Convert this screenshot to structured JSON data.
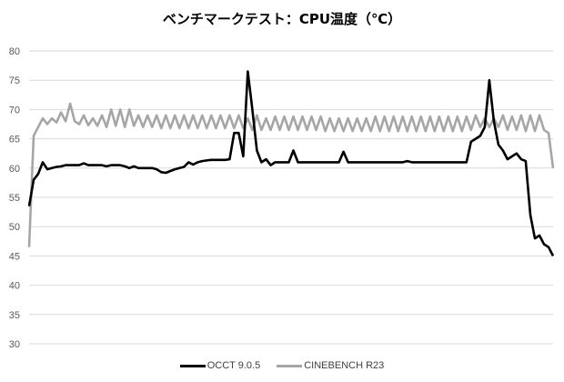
{
  "chart_data": {
    "type": "line",
    "title": "ベンチマークテスト：CPU温度（℃）",
    "xlabel": "",
    "ylabel": "",
    "ylim": [
      30,
      80
    ],
    "yticks": [
      "30",
      "35",
      "40",
      "45",
      "50",
      "55",
      "60",
      "65",
      "70",
      "75",
      "80"
    ],
    "grid": true,
    "legend": "bottom",
    "series": [
      {
        "name": "OCCT 9.0.5",
        "color": "#000000",
        "values": [
          53.5,
          58,
          59,
          61,
          59.8,
          60,
          60.2,
          60.3,
          60.5,
          60.5,
          60.5,
          60.5,
          60.8,
          60.5,
          60.5,
          60.5,
          60.5,
          60.3,
          60.5,
          60.5,
          60.5,
          60.3,
          60,
          60.3,
          60,
          60,
          60,
          60,
          59.8,
          59.3,
          59.2,
          59.5,
          59.8,
          60,
          60.2,
          61,
          60.6,
          61,
          61.2,
          61.3,
          61.4,
          61.4,
          61.4,
          61.4,
          61.5,
          66,
          66,
          62,
          76.5,
          70,
          63,
          61,
          61.5,
          60.5,
          61,
          61,
          61,
          61,
          63,
          61,
          61,
          61,
          61,
          61,
          61,
          61,
          61,
          61,
          61,
          62.8,
          61,
          61,
          61,
          61,
          61,
          61,
          61,
          61,
          61,
          61,
          61,
          61,
          61,
          61.2,
          61,
          61,
          61,
          61,
          61,
          61,
          61,
          61,
          61,
          61,
          61,
          61,
          61,
          64.5,
          65,
          65.5,
          67,
          75,
          68,
          64,
          63,
          61.5,
          62,
          62.5,
          61.5,
          61.2,
          52,
          48,
          48.5,
          47,
          46.5,
          45
        ]
      },
      {
        "name": "CINEBENCH R23",
        "color": "#a6a6a6",
        "values": [
          46.5,
          65.5,
          67,
          68.5,
          67.5,
          68.5,
          67.8,
          69.5,
          68,
          71,
          68,
          67.5,
          69,
          67.3,
          68.5,
          67.2,
          69,
          67,
          70,
          67.2,
          70,
          67,
          70,
          67.2,
          69,
          67,
          69,
          67,
          69,
          66.8,
          69,
          66.8,
          69,
          66.8,
          69,
          66.8,
          69,
          66.8,
          69,
          66.8,
          69,
          66.8,
          69,
          66.8,
          69,
          66.8,
          69,
          66.8,
          68.5,
          66.5,
          69,
          66.5,
          68.5,
          66.5,
          68.8,
          66.5,
          68.8,
          66.5,
          68.8,
          66.5,
          68.8,
          66.5,
          68.8,
          66.5,
          68.8,
          66.3,
          68.5,
          66.3,
          68.5,
          66.3,
          68.5,
          66.3,
          68.5,
          66.3,
          68.5,
          66.3,
          68.8,
          66.3,
          68.8,
          66.3,
          68.8,
          66.3,
          68.8,
          66.3,
          68.8,
          66.3,
          68.8,
          66.3,
          68.8,
          66.3,
          68.8,
          66.3,
          68.8,
          66.3,
          68.8,
          66.3,
          68.8,
          66.5,
          69,
          67,
          68.5,
          67,
          68.5,
          67,
          69,
          66.5,
          68.8,
          66.5,
          69,
          66.3,
          69,
          66.3,
          69,
          66.5,
          66,
          60
        ]
      }
    ]
  }
}
